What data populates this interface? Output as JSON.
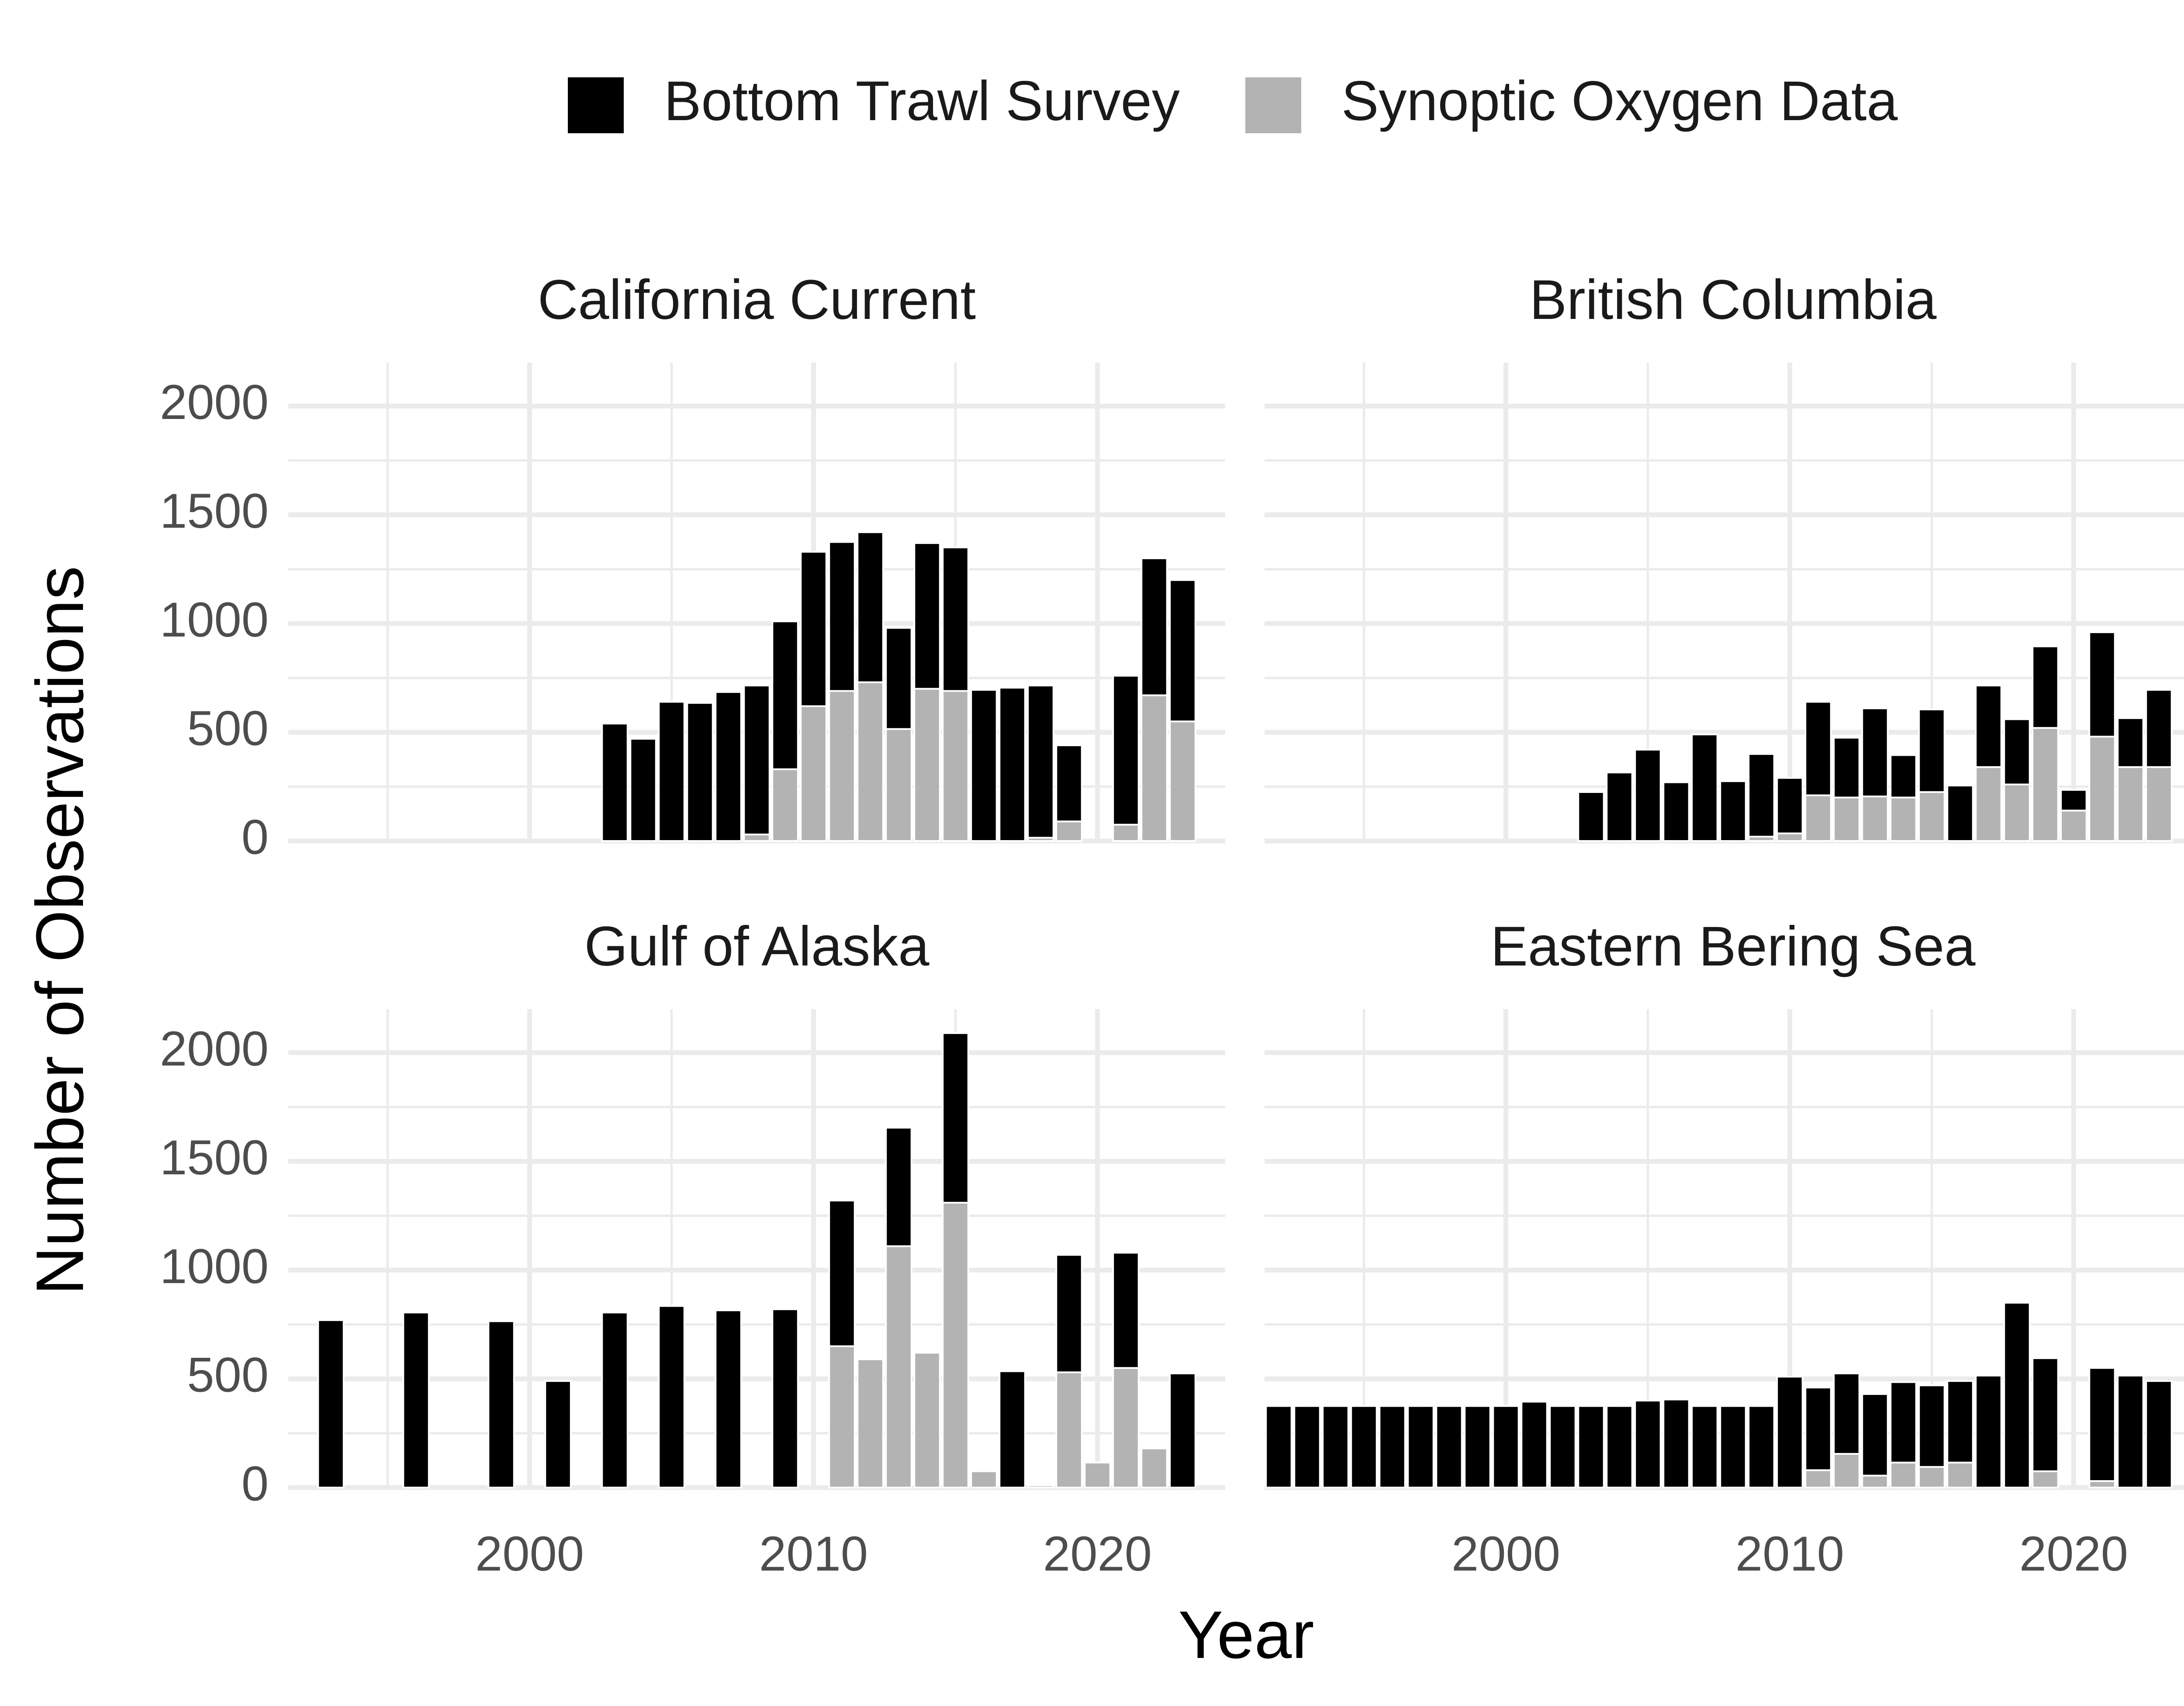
{
  "colors": {
    "bottom_trawl": "#000000",
    "synoptic_oxygen": "#b3b3b3",
    "grid": "#ebebeb",
    "tick_text": "#4d4d4d"
  },
  "chart_data": {
    "type": "bar",
    "stacked": true,
    "xlabel": "Year",
    "ylabel": "Number of Observations",
    "legend": {
      "position": "top",
      "entries": [
        "Bottom Trawl Survey",
        "Synoptic Oxygen Data"
      ]
    },
    "xlim": [
      1991.5,
      2024.5
    ],
    "ylim": [
      0,
      2200
    ],
    "x_ticks": [
      2000,
      2010,
      2020
    ],
    "y_ticks": [
      0,
      500,
      1000,
      1500,
      2000
    ],
    "grid": true,
    "panels": [
      {
        "title": "California Current",
        "years": [
          2003,
          2004,
          2005,
          2006,
          2007,
          2008,
          2009,
          2010,
          2011,
          2012,
          2013,
          2014,
          2015,
          2016,
          2017,
          2018,
          2019,
          2021,
          2022,
          2023
        ],
        "series": [
          {
            "name": "Synoptic Oxygen Data",
            "values": [
              0,
              0,
              0,
              0,
              0,
              30,
              330,
              620,
              690,
              730,
              515,
              700,
              690,
              0,
              0,
              15,
              90,
              75,
              670,
              550
            ]
          },
          {
            "name": "Bottom Trawl Survey",
            "values": [
              540,
              470,
              640,
              635,
              685,
              685,
              680,
              710,
              685,
              690,
              465,
              670,
              660,
              695,
              705,
              700,
              350,
              685,
              630,
              650
            ]
          }
        ]
      },
      {
        "title": "British Columbia",
        "years": [
          2003,
          2004,
          2005,
          2006,
          2007,
          2008,
          2009,
          2010,
          2011,
          2012,
          2013,
          2014,
          2015,
          2016,
          2017,
          2018,
          2019,
          2020,
          2021,
          2022,
          2023
        ],
        "series": [
          {
            "name": "Synoptic Oxygen Data",
            "values": [
              0,
              0,
              0,
              0,
              0,
              0,
              20,
              35,
              210,
              200,
              205,
              200,
              225,
              0,
              340,
              260,
              520,
              140,
              480,
              340,
              340
            ]
          },
          {
            "name": "Bottom Trawl Survey",
            "values": [
              225,
              315,
              420,
              270,
              490,
              275,
              380,
              255,
              430,
              275,
              405,
              195,
              380,
              255,
              375,
              300,
              375,
              95,
              480,
              225,
              355
            ]
          }
        ]
      },
      {
        "title": "Gulf of Alaska",
        "years": [
          1993,
          1996,
          1999,
          2001,
          2003,
          2005,
          2007,
          2009,
          2011,
          2012,
          2013,
          2014,
          2015,
          2016,
          2017,
          2018,
          2019,
          2020,
          2021,
          2022,
          2023
        ],
        "series": [
          {
            "name": "Synoptic Oxygen Data",
            "values": [
              0,
              0,
              0,
              0,
              0,
              0,
              0,
              0,
              650,
              590,
              1110,
              620,
              1310,
              75,
              0,
              10,
              530,
              115,
              550,
              180,
              0
            ]
          },
          {
            "name": "Bottom Trawl Survey",
            "values": [
              770,
              805,
              765,
              490,
              805,
              835,
              815,
              820,
              670,
              0,
              545,
              0,
              780,
              0,
              535,
              0,
              540,
              0,
              530,
              0,
              525
            ]
          }
        ]
      },
      {
        "title": "Eastern Bering Sea",
        "years": [
          1992,
          1993,
          1994,
          1995,
          1996,
          1997,
          1998,
          1999,
          2000,
          2001,
          2002,
          2003,
          2004,
          2005,
          2006,
          2007,
          2008,
          2009,
          2010,
          2011,
          2012,
          2013,
          2014,
          2015,
          2016,
          2017,
          2018,
          2019,
          2021,
          2022,
          2023
        ],
        "series": [
          {
            "name": "Synoptic Oxygen Data",
            "values": [
              0,
              0,
              0,
              0,
              0,
              0,
              0,
              0,
              0,
              0,
              0,
              0,
              0,
              0,
              0,
              0,
              0,
              0,
              0,
              80,
              155,
              55,
              115,
              95,
              115,
              0,
              0,
              75,
              30,
              0,
              0
            ]
          },
          {
            "name": "Bottom Trawl Survey",
            "values": [
              375,
              375,
              375,
              375,
              375,
              375,
              375,
              375,
              375,
              395,
              375,
              375,
              375,
              400,
              405,
              375,
              375,
              375,
              510,
              380,
              370,
              375,
              370,
              375,
              375,
              515,
              850,
              520,
              520,
              515,
              490
            ]
          }
        ]
      }
    ]
  }
}
